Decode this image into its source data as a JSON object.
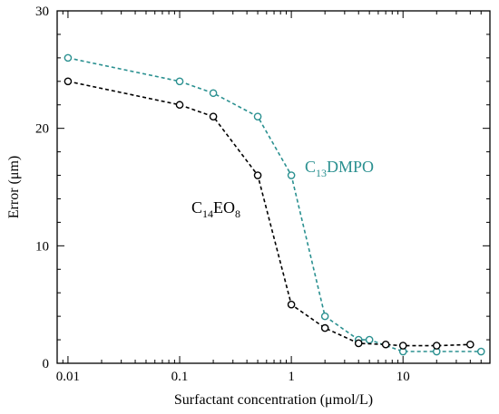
{
  "chart_data": {
    "type": "line",
    "xlabel": "Surfactant concentration (μmol/L)",
    "ylabel": "Error (μm)",
    "xscale": "log",
    "xlim": [
      0.008,
      60
    ],
    "ylim": [
      0,
      30
    ],
    "x_ticks": [
      0.01,
      0.1,
      1,
      10
    ],
    "x_tick_labels": [
      "0.01",
      "0.1",
      "1",
      "10"
    ],
    "y_ticks": [
      0,
      10,
      20,
      30
    ],
    "y_tick_labels": [
      "0",
      "10",
      "20",
      "30"
    ],
    "grid": false,
    "series": [
      {
        "name_parts": {
          "base": "C",
          "sub1": "13",
          "rest": "DMPO",
          "sub2": ""
        },
        "color": "#2a9090",
        "line_style": "dashed",
        "marker": "open-circle",
        "x": [
          0.01,
          0.1,
          0.2,
          0.5,
          1,
          2,
          4,
          5,
          10,
          20,
          50
        ],
        "y": [
          26,
          24,
          23,
          21,
          16,
          4,
          2,
          2,
          1,
          1,
          1
        ]
      },
      {
        "name_parts": {
          "base": "C",
          "sub1": "14",
          "rest": "EO",
          "sub2": "8"
        },
        "color": "#000000",
        "line_style": "dashed",
        "marker": "open-circle",
        "x": [
          0.01,
          0.1,
          0.2,
          0.5,
          1,
          2,
          4,
          7,
          10,
          20,
          40
        ],
        "y": [
          24,
          22,
          21,
          16,
          5,
          3,
          1.7,
          1.6,
          1.5,
          1.5,
          1.6
        ]
      }
    ]
  }
}
